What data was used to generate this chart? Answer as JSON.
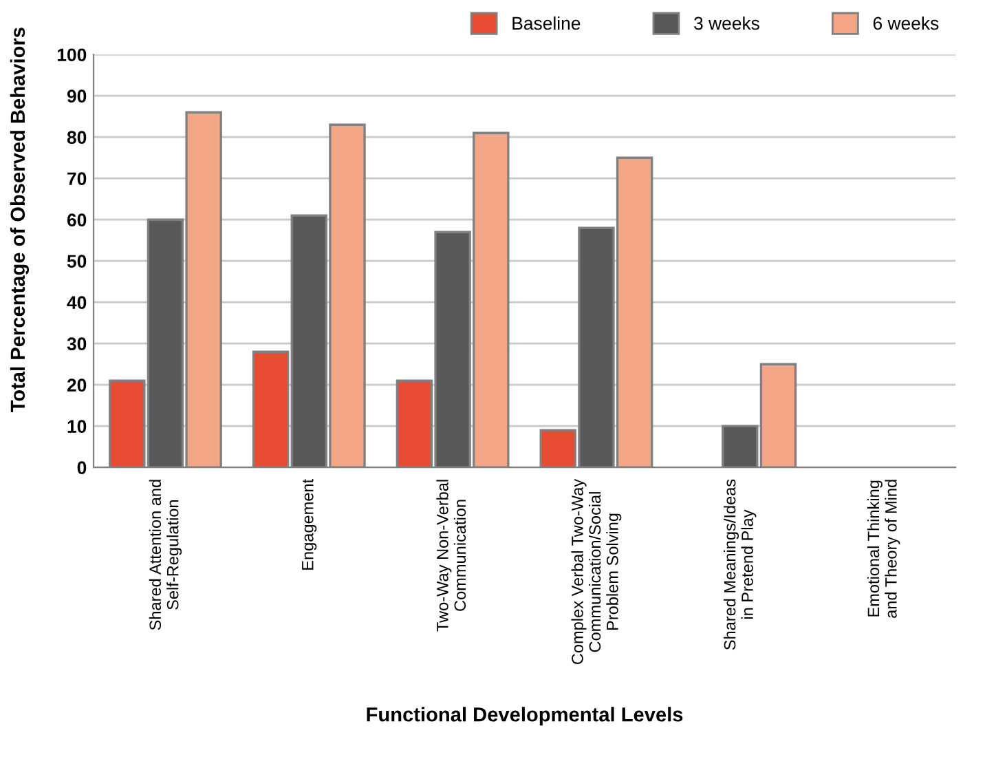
{
  "chart_data": {
    "type": "bar",
    "xlabel": "Functional Developmental Levels",
    "ylabel": "Total Percentage of Observed Behaviors",
    "categories": [
      "Shared Attention and\nSelf-Regulation",
      "Engagement",
      "Two-Way Non-Verbal\nCommunication",
      "Complex Verbal Two-Way\nCommunication/Social\nProblem Solving",
      "Shared Meanings/Ideas\nin Pretend Play",
      "Emotional Thinking\nand Theory of Mind"
    ],
    "series": [
      {
        "name": "Baseline",
        "color": "#e84c33",
        "values": [
          21,
          28,
          21,
          9,
          null,
          null
        ]
      },
      {
        "name": "3 weeks",
        "color": "#58595b",
        "values": [
          60,
          61,
          57,
          58,
          10,
          null
        ]
      },
      {
        "name": "6 weeks",
        "color": "#f4a585",
        "values": [
          86,
          83,
          81,
          75,
          25,
          null
        ]
      }
    ],
    "ylim": [
      0,
      100
    ],
    "yticks": [
      0,
      10,
      20,
      30,
      40,
      50,
      60,
      70,
      80,
      90,
      100
    ],
    "grid": "y",
    "legend": "top right"
  }
}
